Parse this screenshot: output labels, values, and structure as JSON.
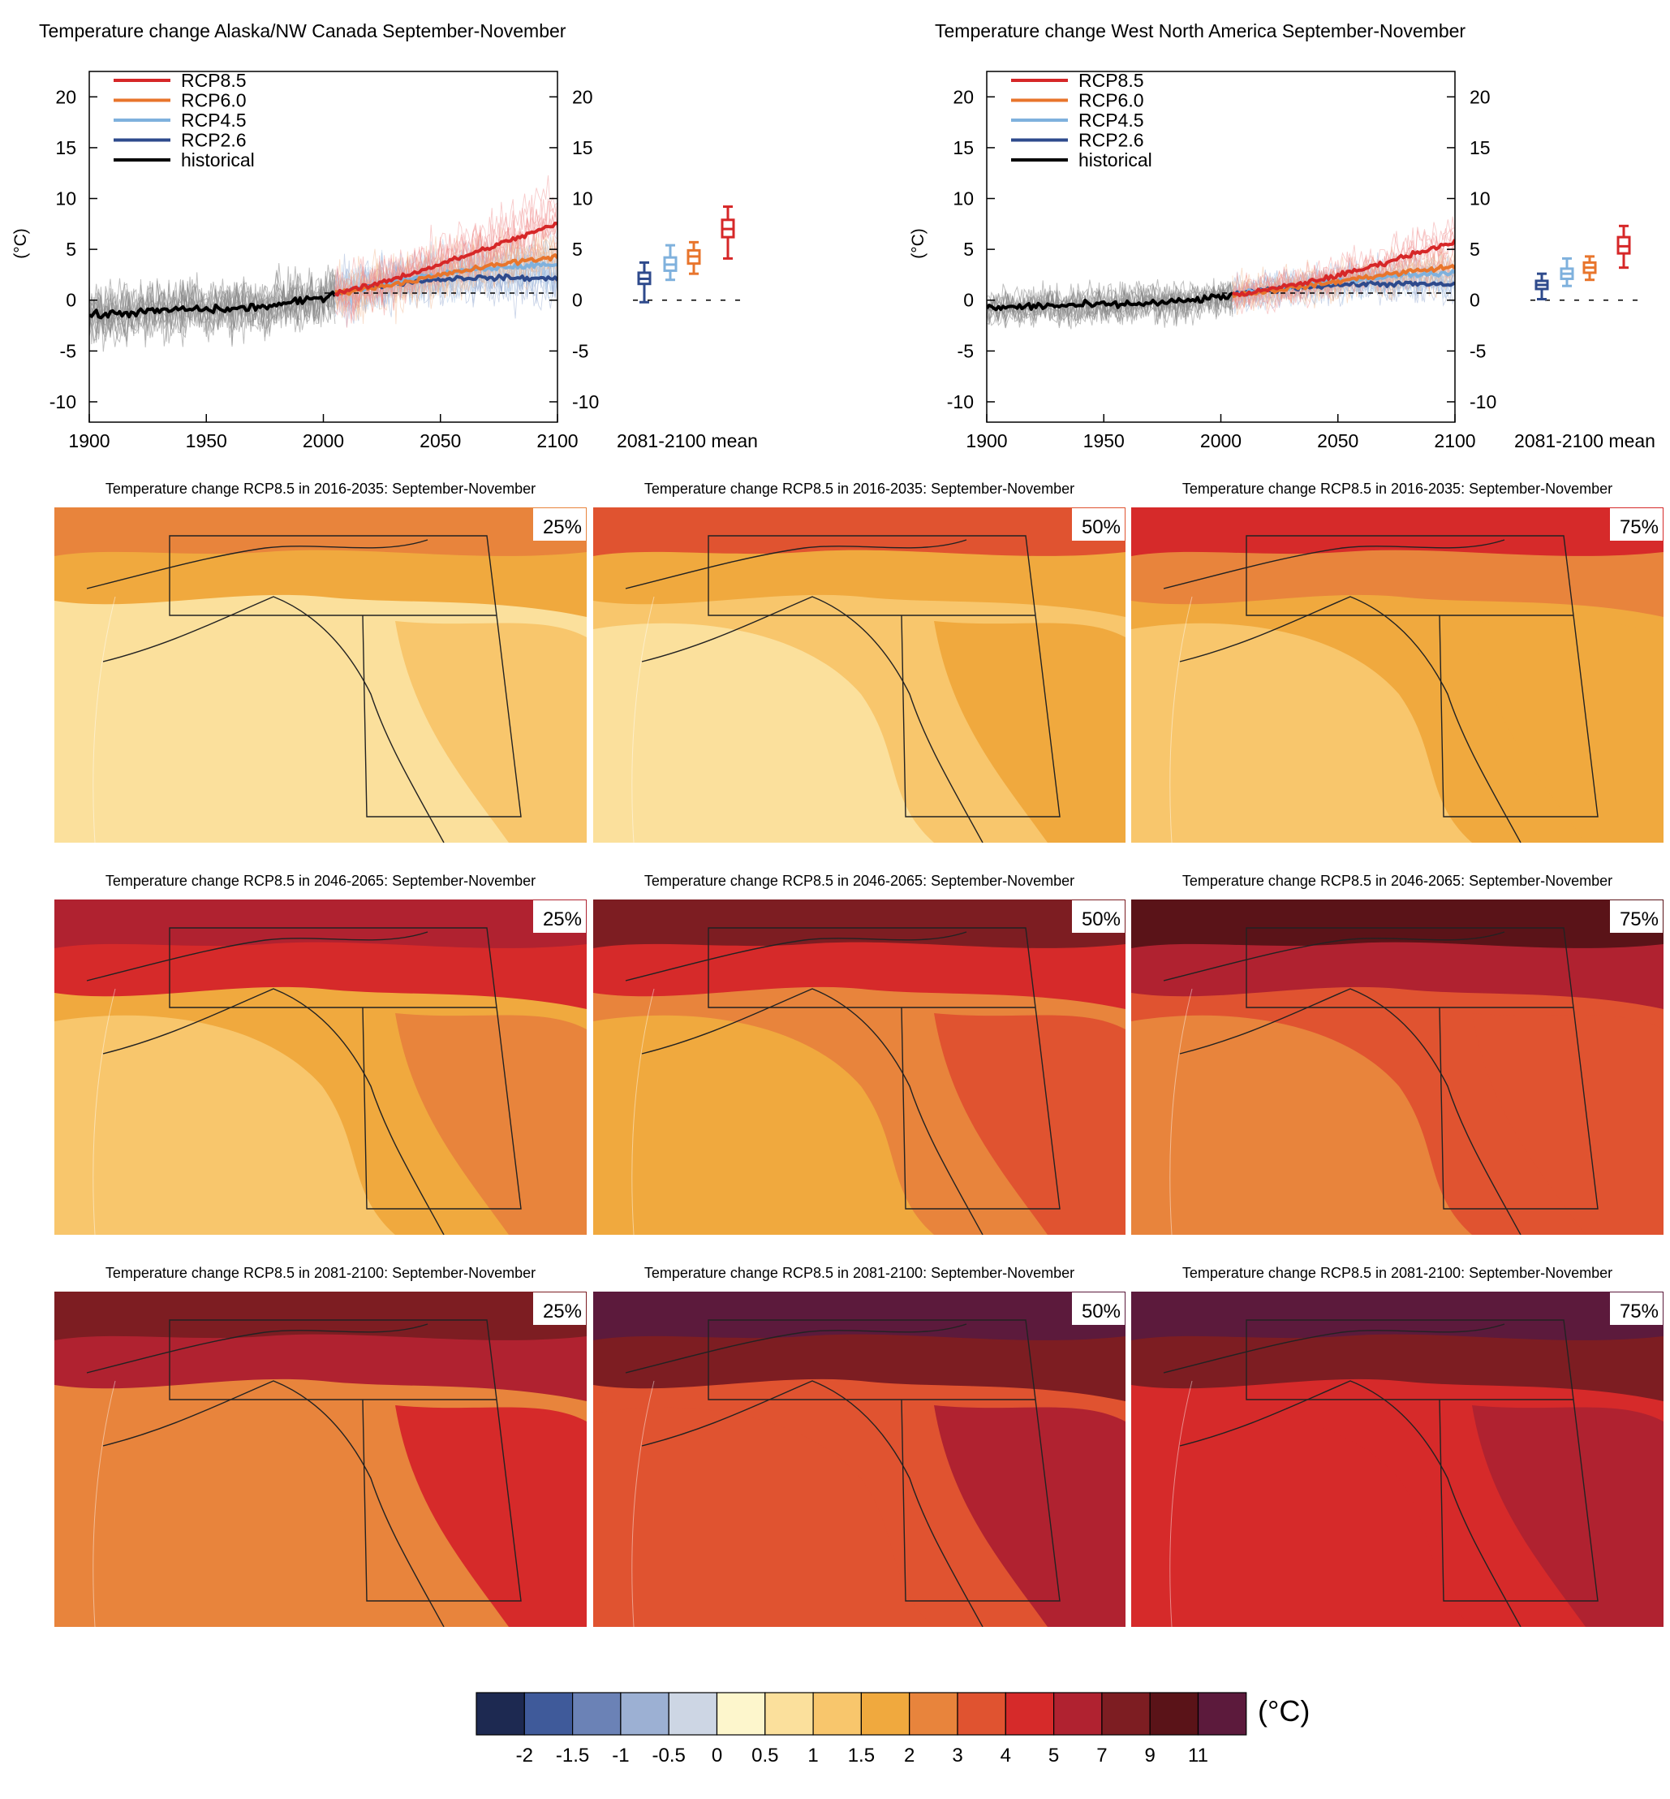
{
  "colors": {
    "rcp85": "#d62728",
    "rcp60": "#e8752c",
    "rcp45": "#7fb1dd",
    "rcp26": "#2e4a8c",
    "historical": "#000000"
  },
  "chart_data": [
    {
      "type": "line",
      "title": "Temperature change Alaska/NW Canada September-November",
      "ylabel": "(°C)",
      "xlim": [
        1900,
        2100
      ],
      "ylim": [
        -12,
        22.5
      ],
      "xticks": [
        1900,
        1950,
        2000,
        2050,
        2100
      ],
      "yticks": [
        20,
        15,
        10,
        5,
        0,
        -5,
        -10
      ],
      "legend": "top-left",
      "series": [
        {
          "name": "RCP8.5",
          "x": [
            2005,
            2020,
            2040,
            2060,
            2080,
            2100
          ],
          "values": [
            0.7,
            1.4,
            2.8,
            4.3,
            5.9,
            7.5
          ]
        },
        {
          "name": "RCP6.0",
          "x": [
            2005,
            2020,
            2040,
            2060,
            2080,
            2100
          ],
          "values": [
            0.7,
            1.2,
            2.0,
            2.9,
            3.7,
            4.3
          ]
        },
        {
          "name": "RCP4.5",
          "x": [
            2005,
            2020,
            2040,
            2060,
            2080,
            2100
          ],
          "values": [
            0.7,
            1.3,
            2.2,
            2.9,
            3.3,
            3.5
          ]
        },
        {
          "name": "RCP2.6",
          "x": [
            2005,
            2020,
            2040,
            2060,
            2080,
            2100
          ],
          "values": [
            0.7,
            1.3,
            1.9,
            2.2,
            2.2,
            2.1
          ]
        },
        {
          "name": "historical",
          "x": [
            1900,
            1920,
            1940,
            1960,
            1980,
            2000,
            2005
          ],
          "values": [
            -1.5,
            -1.2,
            -0.9,
            -0.9,
            -0.5,
            0.3,
            0.7
          ]
        }
      ],
      "boxplots": {
        "label": "2081-2100 mean",
        "items": [
          {
            "name": "RCP2.6",
            "min": -0.2,
            "q1": 1.6,
            "median": 2.1,
            "q3": 2.7,
            "max": 3.7
          },
          {
            "name": "RCP4.5",
            "min": 2.0,
            "q1": 2.9,
            "median": 3.5,
            "q3": 4.2,
            "max": 5.4
          },
          {
            "name": "RCP6.0",
            "min": 2.6,
            "q1": 3.6,
            "median": 4.3,
            "q3": 4.9,
            "max": 5.7
          },
          {
            "name": "RCP8.5",
            "min": 4.1,
            "q1": 6.2,
            "median": 7.0,
            "q3": 7.9,
            "max": 9.2
          }
        ]
      }
    },
    {
      "type": "line",
      "title": "Temperature change West North America September-November",
      "ylabel": "(°C)",
      "xlim": [
        1900,
        2100
      ],
      "ylim": [
        -12,
        22.5
      ],
      "xticks": [
        1900,
        1950,
        2000,
        2050,
        2100
      ],
      "yticks": [
        20,
        15,
        10,
        5,
        0,
        -5,
        -10
      ],
      "legend": "top-left",
      "series": [
        {
          "name": "RCP8.5",
          "x": [
            2005,
            2020,
            2040,
            2060,
            2080,
            2100
          ],
          "values": [
            0.5,
            1.0,
            1.9,
            3.0,
            4.4,
            5.8
          ]
        },
        {
          "name": "RCP6.0",
          "x": [
            2005,
            2020,
            2040,
            2060,
            2080,
            2100
          ],
          "values": [
            0.5,
            0.9,
            1.5,
            2.2,
            2.8,
            3.3
          ]
        },
        {
          "name": "RCP4.5",
          "x": [
            2005,
            2020,
            2040,
            2060,
            2080,
            2100
          ],
          "values": [
            0.5,
            1.0,
            1.6,
            2.1,
            2.5,
            2.7
          ]
        },
        {
          "name": "RCP2.6",
          "x": [
            2005,
            2020,
            2040,
            2060,
            2080,
            2100
          ],
          "values": [
            0.5,
            1.0,
            1.4,
            1.6,
            1.6,
            1.5
          ]
        },
        {
          "name": "historical",
          "x": [
            1900,
            1920,
            1940,
            1960,
            1980,
            2000,
            2005
          ],
          "values": [
            -0.8,
            -0.6,
            -0.5,
            -0.4,
            -0.2,
            0.3,
            0.5
          ]
        }
      ],
      "boxplots": {
        "label": "2081-2100 mean",
        "items": [
          {
            "name": "RCP2.6",
            "min": 0.1,
            "q1": 1.1,
            "median": 1.5,
            "q3": 1.9,
            "max": 2.6
          },
          {
            "name": "RCP4.5",
            "min": 1.4,
            "q1": 2.1,
            "median": 2.6,
            "q3": 3.1,
            "max": 4.1
          },
          {
            "name": "RCP6.0",
            "min": 2.0,
            "q1": 2.7,
            "median": 3.2,
            "q3": 3.7,
            "max": 4.3
          },
          {
            "name": "RCP8.5",
            "min": 3.2,
            "q1": 4.6,
            "median": 5.3,
            "q3": 6.2,
            "max": 7.3
          }
        ]
      }
    },
    {
      "type": "heatmap",
      "maps": [
        {
          "title": "Temperature change RCP8.5 in 2016-2035: September-November",
          "percentile": "25%",
          "level": 0
        },
        {
          "title": "Temperature change RCP8.5 in 2016-2035: September-November",
          "percentile": "50%",
          "level": 1
        },
        {
          "title": "Temperature change RCP8.5 in 2016-2035: September-November",
          "percentile": "75%",
          "level": 2
        },
        {
          "title": "Temperature change RCP8.5 in 2046-2065: September-November",
          "percentile": "25%",
          "level": 3
        },
        {
          "title": "Temperature change RCP8.5 in 2046-2065: September-November",
          "percentile": "50%",
          "level": 4
        },
        {
          "title": "Temperature change RCP8.5 in 2046-2065: September-November",
          "percentile": "75%",
          "level": 5
        },
        {
          "title": "Temperature change RCP8.5 in 2081-2100: September-November",
          "percentile": "25%",
          "level": 6
        },
        {
          "title": "Temperature change RCP8.5 in 2081-2100: September-November",
          "percentile": "50%",
          "level": 7
        },
        {
          "title": "Temperature change RCP8.5 in 2081-2100: September-November",
          "percentile": "75%",
          "level": 8
        }
      ],
      "colorbar": {
        "unit": "(°C)",
        "ticks": [
          "-2",
          "-1.5",
          "-1",
          "-0.5",
          "0",
          "0.5",
          "1",
          "1.5",
          "2",
          "3",
          "4",
          "5",
          "7",
          "9",
          "11"
        ],
        "colors": [
          "#1d2951",
          "#3f5a9a",
          "#6b82b6",
          "#9cb0d3",
          "#cdd6e4",
          "#fdf6cc",
          "#fbe09c",
          "#f8c66c",
          "#f0a93e",
          "#e8843c",
          "#e05330",
          "#d62a2a",
          "#b02230",
          "#7d1d22",
          "#5a1318",
          "#5c1a3c"
        ]
      }
    }
  ]
}
